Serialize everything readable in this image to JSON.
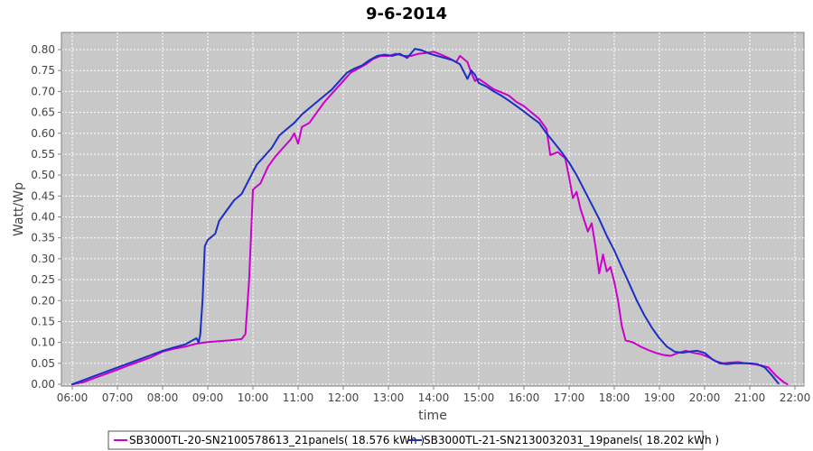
{
  "chart_data": {
    "type": "line",
    "title": "9-6-2014",
    "xlabel": "time",
    "ylabel": "Watt/Wp",
    "grid": true,
    "legend_position": "bottom",
    "x_ticks": [
      "06:00",
      "07:00",
      "08:00",
      "09:00",
      "10:00",
      "11:00",
      "12:00",
      "13:00",
      "14:00",
      "15:00",
      "16:00",
      "17:00",
      "18:00",
      "19:00",
      "20:00",
      "21:00",
      "22:00"
    ],
    "y_ticks": [
      "0.00",
      "0.05",
      "0.10",
      "0.15",
      "0.20",
      "0.25",
      "0.30",
      "0.35",
      "0.40",
      "0.45",
      "0.50",
      "0.55",
      "0.60",
      "0.65",
      "0.70",
      "0.75",
      "0.80"
    ],
    "xlim": [
      "06:00",
      "22:00"
    ],
    "ylim": [
      0,
      0.8
    ],
    "series": [
      {
        "name": "SB3000TL-20-SN2100578613_21panels( 18.576 kWh )",
        "color": "#cc00cc",
        "points": [
          [
            "06:00",
            0.0
          ],
          [
            "06:15",
            0.005
          ],
          [
            "06:30",
            0.015
          ],
          [
            "06:45",
            0.025
          ],
          [
            "07:00",
            0.035
          ],
          [
            "07:15",
            0.045
          ],
          [
            "07:30",
            0.055
          ],
          [
            "07:45",
            0.065
          ],
          [
            "08:00",
            0.078
          ],
          [
            "08:15",
            0.085
          ],
          [
            "08:30",
            0.09
          ],
          [
            "08:45",
            0.097
          ],
          [
            "09:00",
            0.101
          ],
          [
            "09:15",
            0.103
          ],
          [
            "09:30",
            0.105
          ],
          [
            "09:45",
            0.108
          ],
          [
            "09:50",
            0.12
          ],
          [
            "09:55",
            0.25
          ],
          [
            "10:00",
            0.465
          ],
          [
            "10:03",
            0.47
          ],
          [
            "10:10",
            0.48
          ],
          [
            "10:20",
            0.52
          ],
          [
            "10:30",
            0.545
          ],
          [
            "10:40",
            0.565
          ],
          [
            "10:50",
            0.585
          ],
          [
            "10:55",
            0.6
          ],
          [
            "11:00",
            0.575
          ],
          [
            "11:05",
            0.615
          ],
          [
            "11:15",
            0.625
          ],
          [
            "11:25",
            0.65
          ],
          [
            "11:35",
            0.675
          ],
          [
            "11:45",
            0.695
          ],
          [
            "11:55",
            0.715
          ],
          [
            "12:00",
            0.725
          ],
          [
            "12:10",
            0.745
          ],
          [
            "12:20",
            0.755
          ],
          [
            "12:30",
            0.765
          ],
          [
            "12:40",
            0.778
          ],
          [
            "12:50",
            0.785
          ],
          [
            "13:00",
            0.785
          ],
          [
            "13:10",
            0.79
          ],
          [
            "13:20",
            0.785
          ],
          [
            "13:30",
            0.785
          ],
          [
            "13:40",
            0.79
          ],
          [
            "13:50",
            0.792
          ],
          [
            "14:00",
            0.795
          ],
          [
            "14:10",
            0.788
          ],
          [
            "14:20",
            0.78
          ],
          [
            "14:30",
            0.77
          ],
          [
            "14:35",
            0.785
          ],
          [
            "14:45",
            0.77
          ],
          [
            "14:50",
            0.745
          ],
          [
            "14:55",
            0.725
          ],
          [
            "15:00",
            0.73
          ],
          [
            "15:10",
            0.718
          ],
          [
            "15:20",
            0.705
          ],
          [
            "15:30",
            0.698
          ],
          [
            "15:40",
            0.69
          ],
          [
            "15:50",
            0.675
          ],
          [
            "16:00",
            0.665
          ],
          [
            "16:10",
            0.65
          ],
          [
            "16:20",
            0.635
          ],
          [
            "16:30",
            0.61
          ],
          [
            "16:35",
            0.548
          ],
          [
            "16:45",
            0.555
          ],
          [
            "16:55",
            0.54
          ],
          [
            "17:00",
            0.495
          ],
          [
            "17:05",
            0.445
          ],
          [
            "17:10",
            0.46
          ],
          [
            "17:15",
            0.42
          ],
          [
            "17:25",
            0.365
          ],
          [
            "17:30",
            0.385
          ],
          [
            "17:35",
            0.33
          ],
          [
            "17:40",
            0.265
          ],
          [
            "17:45",
            0.31
          ],
          [
            "17:50",
            0.27
          ],
          [
            "17:55",
            0.28
          ],
          [
            "18:00",
            0.245
          ],
          [
            "18:05",
            0.2
          ],
          [
            "18:10",
            0.14
          ],
          [
            "18:15",
            0.105
          ],
          [
            "18:25",
            0.1
          ],
          [
            "18:35",
            0.09
          ],
          [
            "18:45",
            0.082
          ],
          [
            "18:55",
            0.075
          ],
          [
            "19:05",
            0.07
          ],
          [
            "19:15",
            0.068
          ],
          [
            "19:25",
            0.075
          ],
          [
            "19:35",
            0.08
          ],
          [
            "19:45",
            0.075
          ],
          [
            "19:55",
            0.072
          ],
          [
            "20:05",
            0.065
          ],
          [
            "20:15",
            0.055
          ],
          [
            "20:25",
            0.05
          ],
          [
            "20:35",
            0.052
          ],
          [
            "20:45",
            0.053
          ],
          [
            "20:55",
            0.05
          ],
          [
            "21:05",
            0.048
          ],
          [
            "21:15",
            0.045
          ],
          [
            "21:25",
            0.04
          ],
          [
            "21:35",
            0.02
          ],
          [
            "21:45",
            0.005
          ],
          [
            "21:50",
            0.0
          ]
        ]
      },
      {
        "name": "SB3000TL-21-SN2130032031_19panels( 18.202 kWh )",
        "color": "#1c2fc4",
        "points": [
          [
            "06:00",
            0.0
          ],
          [
            "06:15",
            0.01
          ],
          [
            "06:30",
            0.02
          ],
          [
            "06:45",
            0.03
          ],
          [
            "07:00",
            0.04
          ],
          [
            "07:15",
            0.05
          ],
          [
            "07:30",
            0.06
          ],
          [
            "07:45",
            0.07
          ],
          [
            "08:00",
            0.08
          ],
          [
            "08:15",
            0.088
          ],
          [
            "08:30",
            0.095
          ],
          [
            "08:40",
            0.105
          ],
          [
            "08:45",
            0.11
          ],
          [
            "08:48",
            0.1
          ],
          [
            "08:50",
            0.12
          ],
          [
            "08:53",
            0.2
          ],
          [
            "08:56",
            0.33
          ],
          [
            "09:00",
            0.345
          ],
          [
            "09:10",
            0.36
          ],
          [
            "09:15",
            0.39
          ],
          [
            "09:25",
            0.415
          ],
          [
            "09:35",
            0.44
          ],
          [
            "09:45",
            0.455
          ],
          [
            "09:55",
            0.49
          ],
          [
            "10:05",
            0.525
          ],
          [
            "10:15",
            0.545
          ],
          [
            "10:25",
            0.565
          ],
          [
            "10:35",
            0.595
          ],
          [
            "10:45",
            0.61
          ],
          [
            "10:55",
            0.625
          ],
          [
            "11:05",
            0.645
          ],
          [
            "11:15",
            0.66
          ],
          [
            "11:25",
            0.675
          ],
          [
            "11:35",
            0.69
          ],
          [
            "11:45",
            0.705
          ],
          [
            "11:55",
            0.725
          ],
          [
            "12:05",
            0.745
          ],
          [
            "12:15",
            0.755
          ],
          [
            "12:25",
            0.762
          ],
          [
            "12:35",
            0.775
          ],
          [
            "12:45",
            0.785
          ],
          [
            "12:55",
            0.788
          ],
          [
            "13:05",
            0.785
          ],
          [
            "13:15",
            0.79
          ],
          [
            "13:25",
            0.78
          ],
          [
            "13:35",
            0.802
          ],
          [
            "13:45",
            0.798
          ],
          [
            "13:55",
            0.79
          ],
          [
            "14:05",
            0.785
          ],
          [
            "14:15",
            0.78
          ],
          [
            "14:25",
            0.775
          ],
          [
            "14:35",
            0.765
          ],
          [
            "14:45",
            0.73
          ],
          [
            "14:50",
            0.75
          ],
          [
            "14:55",
            0.74
          ],
          [
            "15:00",
            0.72
          ],
          [
            "15:10",
            0.712
          ],
          [
            "15:20",
            0.7
          ],
          [
            "15:30",
            0.69
          ],
          [
            "15:40",
            0.678
          ],
          [
            "15:50",
            0.665
          ],
          [
            "16:00",
            0.652
          ],
          [
            "16:10",
            0.638
          ],
          [
            "16:20",
            0.625
          ],
          [
            "16:30",
            0.6
          ],
          [
            "16:40",
            0.578
          ],
          [
            "16:50",
            0.555
          ],
          [
            "17:00",
            0.53
          ],
          [
            "17:10",
            0.5
          ],
          [
            "17:20",
            0.465
          ],
          [
            "17:30",
            0.43
          ],
          [
            "17:40",
            0.395
          ],
          [
            "17:50",
            0.355
          ],
          [
            "18:00",
            0.32
          ],
          [
            "18:10",
            0.28
          ],
          [
            "18:20",
            0.24
          ],
          [
            "18:30",
            0.2
          ],
          [
            "18:40",
            0.165
          ],
          [
            "18:50",
            0.135
          ],
          [
            "19:00",
            0.11
          ],
          [
            "19:10",
            0.09
          ],
          [
            "19:20",
            0.078
          ],
          [
            "19:30",
            0.075
          ],
          [
            "19:40",
            0.078
          ],
          [
            "19:50",
            0.08
          ],
          [
            "20:00",
            0.075
          ],
          [
            "20:10",
            0.06
          ],
          [
            "20:20",
            0.05
          ],
          [
            "20:30",
            0.048
          ],
          [
            "20:40",
            0.05
          ],
          [
            "20:50",
            0.05
          ],
          [
            "21:00",
            0.05
          ],
          [
            "21:10",
            0.048
          ],
          [
            "21:20",
            0.04
          ],
          [
            "21:30",
            0.02
          ],
          [
            "21:38",
            0.002
          ]
        ]
      }
    ]
  }
}
